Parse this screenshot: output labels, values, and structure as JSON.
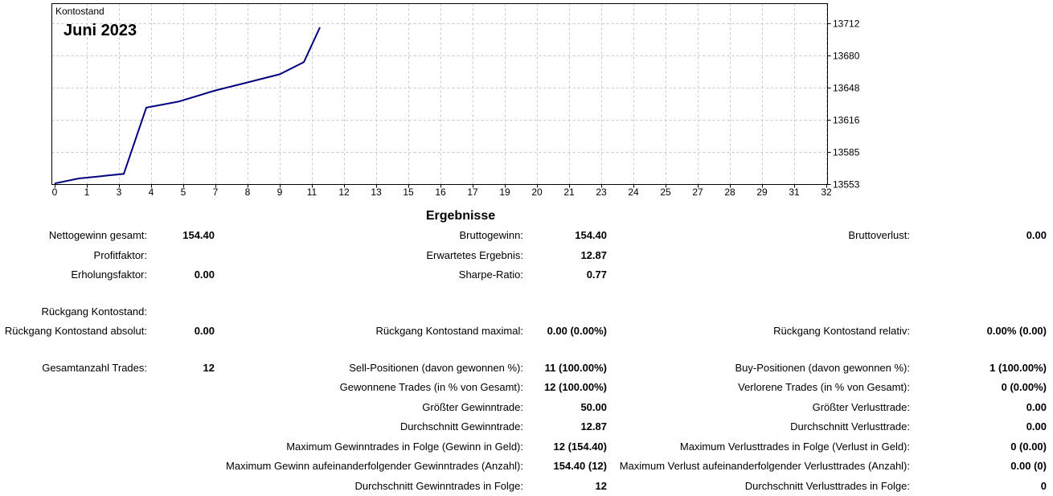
{
  "chart_data": {
    "type": "line",
    "title": "Kontostand",
    "subtitle": "Juni 2023",
    "x_ticks": [
      "0",
      "1",
      "3",
      "4",
      "5",
      "7",
      "8",
      "9",
      "11",
      "12",
      "13",
      "15",
      "16",
      "17",
      "19",
      "20",
      "21",
      "23",
      "24",
      "25",
      "27",
      "28",
      "29",
      "31",
      "32"
    ],
    "y_ticks": [
      "13553",
      "13585",
      "13616",
      "13648",
      "13680",
      "13712"
    ],
    "ylim": [
      13553,
      13712
    ],
    "grid": true,
    "series": [
      {
        "values": [
          13554.0,
          13559.0,
          13563.5,
          13629.0,
          13635.0,
          13646.0,
          13654.0,
          13662.0,
          13674.0,
          13708.4
        ],
        "x_index": [
          0,
          0.75,
          2.15,
          2.85,
          3.85,
          5.0,
          6.0,
          7.0,
          7.75,
          8.25
        ],
        "color": "#000080"
      }
    ]
  },
  "stats": {
    "title": "Ergebnisse",
    "rows": [
      {
        "y": 294,
        "cells": [
          {
            "label": "Nettogewinn gesamt:",
            "value": "154.40",
            "col": 0
          },
          {
            "label": "Bruttogewinn:",
            "value": "154.40",
            "col": 1
          },
          {
            "label": "Bruttoverlust:",
            "value": "0.00",
            "col": 2
          }
        ]
      },
      {
        "y": 319,
        "cells": [
          {
            "label": "Profitfaktor:",
            "value": "",
            "col": 0
          },
          {
            "label": "Erwartetes Ergebnis:",
            "value": "12.87",
            "col": 1
          }
        ]
      },
      {
        "y": 343,
        "cells": [
          {
            "label": "Erholungsfaktor:",
            "value": "0.00",
            "col": 0
          },
          {
            "label": "Sharpe-Ratio:",
            "value": "0.77",
            "col": 1
          }
        ]
      },
      {
        "y": 389,
        "cells": [
          {
            "label": "Rückgang Kontostand:",
            "value": "",
            "col": 0
          }
        ]
      },
      {
        "y": 413,
        "cells": [
          {
            "label": "Rückgang Kontostand absolut:",
            "value": "0.00",
            "col": 0
          },
          {
            "label": "Rückgang Kontostand maximal:",
            "value": "0.00 (0.00%)",
            "col": 1
          },
          {
            "label": "Rückgang Kontostand relativ:",
            "value": "0.00% (0.00)",
            "col": 2
          }
        ]
      },
      {
        "y": 459,
        "cells": [
          {
            "label": "Gesamtanzahl Trades:",
            "value": "12",
            "col": 0
          },
          {
            "label": "Sell-Positionen (davon gewonnen %):",
            "value": "11 (100.00%)",
            "col": 1
          },
          {
            "label": "Buy-Positionen (davon gewonnen %):",
            "value": "1 (100.00%)",
            "col": 2
          }
        ]
      },
      {
        "y": 483,
        "cells": [
          {
            "label": "Gewonnene Trades (in % von Gesamt):",
            "value": "12 (100.00%)",
            "col": 1
          },
          {
            "label": "Verlorene Trades (in % von Gesamt):",
            "value": "0 (0.00%)",
            "col": 2
          }
        ]
      },
      {
        "y": 508,
        "cells": [
          {
            "label": "Größter Gewinntrade:",
            "value": "50.00",
            "col": 1
          },
          {
            "label": "Größter Verlusttrade:",
            "value": "0.00",
            "col": 2
          }
        ]
      },
      {
        "y": 532,
        "cells": [
          {
            "label": "Durchschnitt Gewinntrade:",
            "value": "12.87",
            "col": 1
          },
          {
            "label": "Durchschnitt Verlusttrade:",
            "value": "0.00",
            "col": 2
          }
        ]
      },
      {
        "y": 557,
        "cells": [
          {
            "label": "Maximum Gewinntrades in Folge (Gewinn in Geld):",
            "value": "12 (154.40)",
            "col": 1
          },
          {
            "label": "Maximum Verlusttrades in Folge (Verlust in Geld):",
            "value": "0 (0.00)",
            "col": 2
          }
        ]
      },
      {
        "y": 581,
        "cells": [
          {
            "label": "Maximum Gewinn aufeinanderfolgender Gewinntrades (Anzahl):",
            "value": "154.40 (12)",
            "col": 1
          },
          {
            "label": "Maximum Verlust aufeinanderfolgender Verlusttrades (Anzahl):",
            "value": "0.00 (0)",
            "col": 2
          }
        ]
      },
      {
        "y": 606,
        "cells": [
          {
            "label": "Durchschnitt Gewinntrades in Folge:",
            "value": "12",
            "col": 1
          },
          {
            "label": "Durchschnitt Verlusttrades in Folge:",
            "value": "0",
            "col": 2
          }
        ]
      }
    ]
  }
}
